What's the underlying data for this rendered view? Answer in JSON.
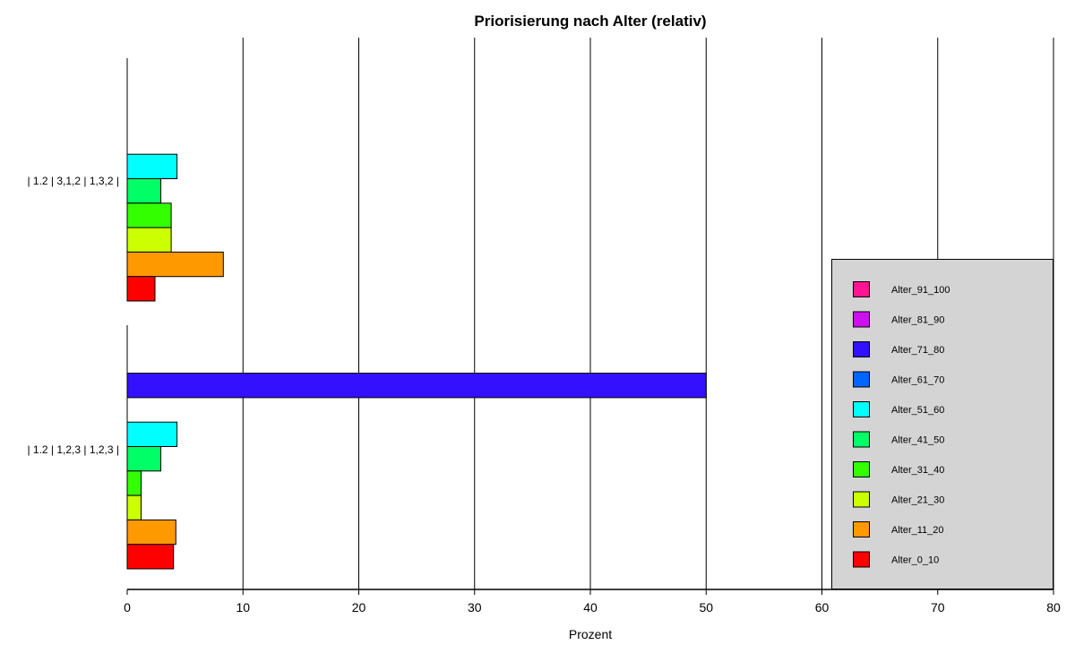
{
  "chart_data": {
    "type": "bar",
    "orientation": "horizontal",
    "title": "Priorisierung nach Alter (relativ)",
    "xlabel": "Prozent",
    "ylabel": "",
    "xlim": [
      0,
      80
    ],
    "xticks": [
      0,
      10,
      20,
      30,
      40,
      50,
      60,
      70,
      80
    ],
    "grid": true,
    "legend_position": "right",
    "categories": [
      "| 1.2 | 3,1,2 | 1,3,2 |",
      "| 1.2 | 1,2,3 | 1,2,3 |"
    ],
    "series": [
      {
        "name": "Alter_91_100",
        "color": "#ff1493",
        "values": [
          0,
          0
        ]
      },
      {
        "name": "Alter_81_90",
        "color": "#cc11ee",
        "values": [
          0,
          0
        ]
      },
      {
        "name": "Alter_71_80",
        "color": "#3311ff",
        "values": [
          0,
          50
        ]
      },
      {
        "name": "Alter_61_70",
        "color": "#0066ff",
        "values": [
          0,
          0
        ]
      },
      {
        "name": "Alter_51_60",
        "color": "#00ffff",
        "values": [
          4.3,
          4.3
        ]
      },
      {
        "name": "Alter_41_50",
        "color": "#00ff66",
        "values": [
          2.9,
          2.9
        ]
      },
      {
        "name": "Alter_31_40",
        "color": "#33ff00",
        "values": [
          3.8,
          1.2
        ]
      },
      {
        "name": "Alter_21_30",
        "color": "#ccff00",
        "values": [
          3.8,
          1.2
        ]
      },
      {
        "name": "Alter_11_20",
        "color": "#ff9900",
        "values": [
          8.3,
          4.2
        ]
      },
      {
        "name": "Alter_0_10",
        "color": "#ff0000",
        "values": [
          2.4,
          4.0
        ]
      }
    ]
  }
}
